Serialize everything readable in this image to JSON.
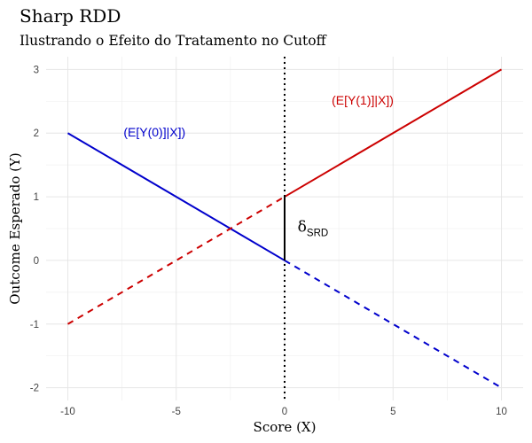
{
  "chart_data": {
    "type": "line",
    "title": "Sharp RDD",
    "subtitle": "Ilustrando o Efeito do Tratamento no Cutoff",
    "xlabel": "Score (X)",
    "ylabel": "Outcome Esperado (Y)",
    "xlim": [
      -11,
      11
    ],
    "ylim": [
      -2.2,
      3.2
    ],
    "x_ticks": [
      -10,
      -5,
      0,
      5,
      10
    ],
    "y_ticks": [
      -2,
      -1,
      0,
      1,
      2,
      3
    ],
    "x_tick_labels": [
      "-10",
      "-5",
      "0",
      "5",
      "10"
    ],
    "y_tick_labels": [
      "-2",
      "-1",
      "0",
      "1",
      "2",
      "3"
    ],
    "grid": true,
    "cutoff": 0,
    "series": [
      {
        "name": "(E[Y(0)]|X])",
        "color": "#0000cc",
        "solid": {
          "x": [
            -10,
            0
          ],
          "y": [
            2,
            0
          ]
        },
        "dashed": {
          "x": [
            0,
            10
          ],
          "y": [
            0,
            -2
          ]
        }
      },
      {
        "name": "(E[Y(1)]|X])",
        "color": "#cc0000",
        "solid": {
          "x": [
            0,
            10
          ],
          "y": [
            1,
            3
          ]
        },
        "dashed": {
          "x": [
            -10,
            0
          ],
          "y": [
            -1,
            1
          ]
        }
      }
    ],
    "annotations": [
      {
        "text": "(E[Y(0)]|X])",
        "x": -6,
        "y": 1.95,
        "color": "#0000cc"
      },
      {
        "text": "(E[Y(1)]|X])",
        "x": 3.6,
        "y": 2.45,
        "color": "#cc0000"
      }
    ],
    "effect": {
      "x": 0,
      "y0": 0,
      "y1": 1,
      "symbol": "δ",
      "subscript": "SRD",
      "label_x": 0.6,
      "label_y": 0.45
    }
  }
}
